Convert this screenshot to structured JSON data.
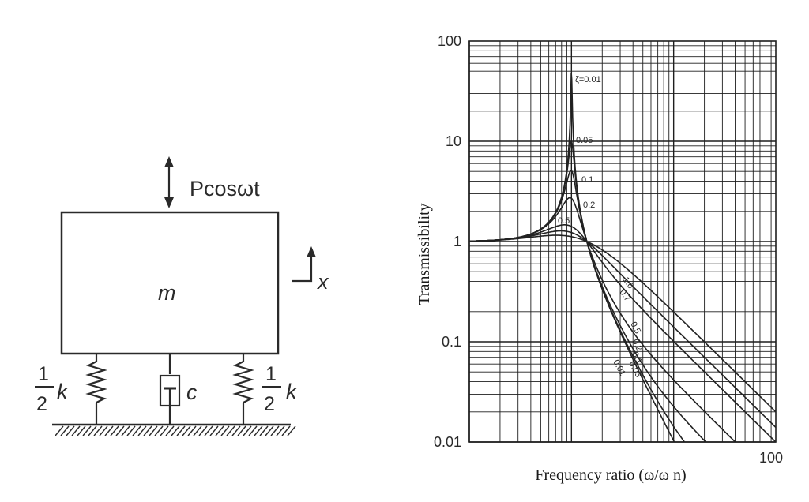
{
  "diagram": {
    "force_label": "Pcosωt",
    "mass_label": "m",
    "displacement_label": "x",
    "damper_label": "c",
    "spring_left": {
      "numerator": "1",
      "denominator": "2",
      "symbol": "k"
    },
    "spring_right": {
      "numerator": "1",
      "denominator": "2",
      "symbol": "k"
    }
  },
  "chart_data": {
    "type": "line",
    "title": "",
    "xlabel": "Frequency ratio (ω/ω n)",
    "ylabel": "Transmissibility",
    "xscale": "log",
    "yscale": "log",
    "xlim": [
      0.1,
      100
    ],
    "ylim": [
      0.01,
      100
    ],
    "grid": true,
    "x_tick_labels": [
      "100"
    ],
    "y_tick_labels": [
      "100",
      "10",
      "1",
      "0.1",
      "0.01"
    ],
    "zeta_prefix": "ζ=",
    "series": [
      {
        "name": "0.01",
        "zeta": 0.01,
        "peak_label": "ζ=0.01",
        "tail_label": "0.01"
      },
      {
        "name": "0.05",
        "zeta": 0.05,
        "peak_label": "0.05",
        "tail_label": "0.05"
      },
      {
        "name": "0.1",
        "zeta": 0.1,
        "peak_label": "0.1",
        "tail_label": "0.1"
      },
      {
        "name": "0.2",
        "zeta": 0.2,
        "peak_label": "0.2",
        "tail_label": "0.2"
      },
      {
        "name": "0.5",
        "zeta": 0.5,
        "peak_label": "0.5",
        "tail_label": "0.5"
      },
      {
        "name": "0.7",
        "zeta": 0.7,
        "peak_label": "",
        "tail_label": "0.7"
      },
      {
        "name": "1.0",
        "zeta": 1.0,
        "peak_label": "",
        "tail_label": "1.0"
      }
    ],
    "curve_color": "#222222",
    "grid_color": "#1e1e1e"
  }
}
